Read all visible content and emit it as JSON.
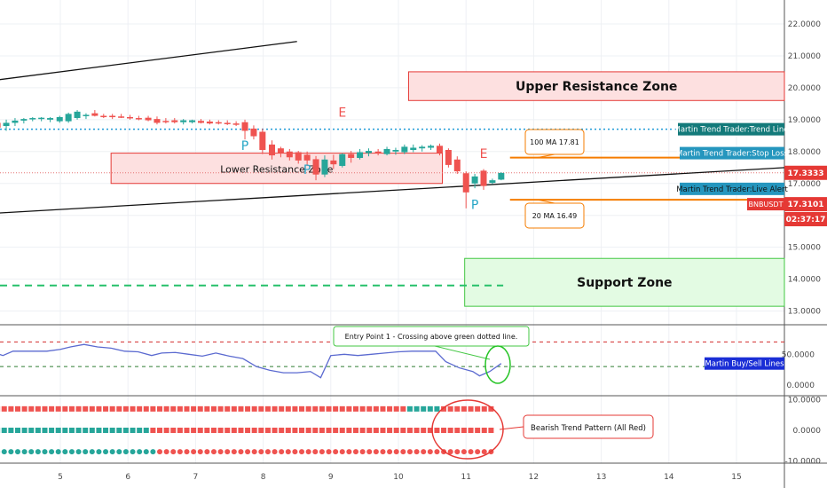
{
  "colors": {
    "up": "#26a69a",
    "down": "#ef5350",
    "resistance_fill": "#fde0e0",
    "resistance_stroke": "#e53935",
    "support_fill": "#e3fbe3",
    "support_stroke": "#43c743",
    "trendline_blue": "#1e9bd7",
    "ma_orange": "#f57c00",
    "signal_green": "#26c06a",
    "pattern_red": "#e53935",
    "rsi_blue": "#5b6ad0"
  },
  "chart_data": [
    {
      "type": "candlestick",
      "pair_tag": "BNBUSDT",
      "last_price": "17.3333",
      "tag_price": "17.3101",
      "countdown": "02:37:17",
      "y_ticks": [
        "22.0000",
        "21.0000",
        "20.0000",
        "19.0000",
        "18.0000",
        "17.0000",
        "16.0000",
        "15.0000",
        "14.0000",
        "13.0000"
      ],
      "ylim": [
        12.3,
        22.5
      ],
      "x_ticks": [
        "5",
        "6",
        "7",
        "8",
        "9",
        "10",
        "11",
        "12",
        "13",
        "14",
        "15"
      ],
      "candles": [
        {
          "x": 3.97,
          "o": 18.95,
          "h": 19.15,
          "l": 18.7,
          "c": 18.9
        },
        {
          "x": 4.07,
          "o": 18.9,
          "h": 19.0,
          "l": 18.2,
          "c": 18.75
        },
        {
          "x": 4.2,
          "o": 18.8,
          "h": 19.0,
          "l": 18.65,
          "c": 18.9
        },
        {
          "x": 4.33,
          "o": 18.9,
          "h": 19.05,
          "l": 18.8,
          "c": 18.97
        },
        {
          "x": 4.46,
          "o": 18.97,
          "h": 19.05,
          "l": 18.88,
          "c": 19.02
        },
        {
          "x": 4.59,
          "o": 19.02,
          "h": 19.08,
          "l": 18.95,
          "c": 19.05
        },
        {
          "x": 4.72,
          "o": 19.02,
          "h": 19.08,
          "l": 18.95,
          "c": 19.06
        },
        {
          "x": 4.85,
          "o": 19.0,
          "h": 19.08,
          "l": 18.92,
          "c": 19.05
        },
        {
          "x": 4.99,
          "o": 18.95,
          "h": 19.12,
          "l": 18.9,
          "c": 19.08
        },
        {
          "x": 5.12,
          "o": 18.95,
          "h": 19.22,
          "l": 18.9,
          "c": 19.18
        },
        {
          "x": 5.25,
          "o": 19.05,
          "h": 19.3,
          "l": 19.0,
          "c": 19.25
        },
        {
          "x": 5.38,
          "o": 19.12,
          "h": 19.2,
          "l": 19.02,
          "c": 19.15
        },
        {
          "x": 5.51,
          "o": 19.2,
          "h": 19.3,
          "l": 19.1,
          "c": 19.12
        },
        {
          "x": 5.64,
          "o": 19.12,
          "h": 19.18,
          "l": 19.05,
          "c": 19.1
        },
        {
          "x": 5.77,
          "o": 19.12,
          "h": 19.18,
          "l": 19.02,
          "c": 19.08
        },
        {
          "x": 5.9,
          "o": 19.1,
          "h": 19.18,
          "l": 19.05,
          "c": 19.07
        },
        {
          "x": 6.03,
          "o": 19.08,
          "h": 19.15,
          "l": 19.0,
          "c": 19.05
        },
        {
          "x": 6.16,
          "o": 19.05,
          "h": 19.12,
          "l": 18.98,
          "c": 19.02
        },
        {
          "x": 6.3,
          "o": 19.06,
          "h": 19.12,
          "l": 18.95,
          "c": 18.98
        },
        {
          "x": 6.43,
          "o": 19.02,
          "h": 19.1,
          "l": 18.85,
          "c": 18.9
        },
        {
          "x": 6.56,
          "o": 18.96,
          "h": 19.05,
          "l": 18.88,
          "c": 18.92
        },
        {
          "x": 6.69,
          "o": 18.98,
          "h": 19.05,
          "l": 18.88,
          "c": 18.92
        },
        {
          "x": 6.82,
          "o": 18.92,
          "h": 19.02,
          "l": 18.85,
          "c": 18.98
        },
        {
          "x": 6.95,
          "o": 18.92,
          "h": 19.0,
          "l": 18.88,
          "c": 18.98
        },
        {
          "x": 7.08,
          "o": 18.96,
          "h": 19.02,
          "l": 18.88,
          "c": 18.9
        },
        {
          "x": 7.21,
          "o": 18.94,
          "h": 19.0,
          "l": 18.85,
          "c": 18.88
        },
        {
          "x": 7.34,
          "o": 18.92,
          "h": 18.98,
          "l": 18.85,
          "c": 18.88
        },
        {
          "x": 7.47,
          "o": 18.9,
          "h": 18.98,
          "l": 18.83,
          "c": 18.86
        },
        {
          "x": 7.6,
          "o": 18.88,
          "h": 18.95,
          "l": 18.8,
          "c": 18.85
        },
        {
          "x": 7.73,
          "o": 18.92,
          "h": 19.0,
          "l": 18.38,
          "c": 18.65
        },
        {
          "x": 7.86,
          "o": 18.72,
          "h": 18.82,
          "l": 18.38,
          "c": 18.48
        },
        {
          "x": 7.99,
          "o": 18.62,
          "h": 18.72,
          "l": 17.92,
          "c": 18.05
        },
        {
          "x": 8.13,
          "o": 18.22,
          "h": 18.35,
          "l": 17.75,
          "c": 17.88
        },
        {
          "x": 8.26,
          "o": 18.1,
          "h": 18.15,
          "l": 17.82,
          "c": 17.95
        },
        {
          "x": 8.39,
          "o": 18.0,
          "h": 18.08,
          "l": 17.72,
          "c": 17.82
        },
        {
          "x": 8.52,
          "o": 17.98,
          "h": 18.02,
          "l": 17.62,
          "c": 17.72
        },
        {
          "x": 8.65,
          "o": 17.9,
          "h": 18.0,
          "l": 17.55,
          "c": 17.72
        },
        {
          "x": 8.78,
          "o": 17.76,
          "h": 17.86,
          "l": 17.1,
          "c": 17.28
        },
        {
          "x": 8.91,
          "o": 17.28,
          "h": 17.88,
          "l": 17.2,
          "c": 17.75
        },
        {
          "x": 9.04,
          "o": 17.72,
          "h": 17.9,
          "l": 17.45,
          "c": 17.6
        },
        {
          "x": 9.17,
          "o": 17.55,
          "h": 17.95,
          "l": 17.5,
          "c": 17.92
        },
        {
          "x": 9.3,
          "o": 17.92,
          "h": 18.02,
          "l": 17.65,
          "c": 17.8
        },
        {
          "x": 9.43,
          "o": 17.8,
          "h": 18.08,
          "l": 17.75,
          "c": 17.98
        },
        {
          "x": 9.56,
          "o": 17.95,
          "h": 18.1,
          "l": 17.85,
          "c": 18.02
        },
        {
          "x": 9.7,
          "o": 18.0,
          "h": 18.08,
          "l": 17.88,
          "c": 17.96
        },
        {
          "x": 9.83,
          "o": 17.92,
          "h": 18.15,
          "l": 17.88,
          "c": 18.08
        },
        {
          "x": 9.96,
          "o": 18.0,
          "h": 18.12,
          "l": 17.9,
          "c": 18.05
        },
        {
          "x": 10.09,
          "o": 17.98,
          "h": 18.22,
          "l": 17.92,
          "c": 18.15
        },
        {
          "x": 10.22,
          "o": 18.05,
          "h": 18.22,
          "l": 17.98,
          "c": 18.12
        },
        {
          "x": 10.35,
          "o": 18.1,
          "h": 18.2,
          "l": 18.0,
          "c": 18.15
        },
        {
          "x": 10.48,
          "o": 18.12,
          "h": 18.22,
          "l": 18.05,
          "c": 18.18
        },
        {
          "x": 10.61,
          "o": 18.18,
          "h": 18.25,
          "l": 17.88,
          "c": 17.95
        },
        {
          "x": 10.74,
          "o": 18.05,
          "h": 18.1,
          "l": 17.5,
          "c": 17.58
        },
        {
          "x": 10.87,
          "o": 17.75,
          "h": 17.85,
          "l": 17.3,
          "c": 17.38
        },
        {
          "x": 11.0,
          "o": 17.32,
          "h": 17.38,
          "l": 16.22,
          "c": 16.72
        },
        {
          "x": 11.13,
          "o": 17.0,
          "h": 17.3,
          "l": 16.85,
          "c": 17.22
        },
        {
          "x": 11.26,
          "o": 17.4,
          "h": 17.45,
          "l": 16.8,
          "c": 16.92
        },
        {
          "x": 11.39,
          "o": 17.02,
          "h": 17.15,
          "l": 16.98,
          "c": 17.1
        },
        {
          "x": 11.52,
          "o": 17.12,
          "h": 17.35,
          "l": 17.1,
          "c": 17.33
        }
      ],
      "marks": [
        {
          "text": "P",
          "x": 7.73,
          "y": 18.05,
          "color": "#26a6c6"
        },
        {
          "text": "P",
          "x": 8.65,
          "y": 17.3,
          "color": "#26a6c6"
        },
        {
          "text": "P",
          "x": 11.13,
          "y": 16.2,
          "color": "#26a6c6"
        },
        {
          "text": "E",
          "x": 9.17,
          "y": 19.1,
          "color": "#ef5350"
        },
        {
          "text": "E",
          "x": 11.26,
          "y": 17.8,
          "color": "#ef5350"
        }
      ],
      "zones": {
        "upper": {
          "label": "Upper Resistance Zone",
          "x0": 10.15,
          "x1": 15.75,
          "y0": 19.6,
          "y1": 20.5
        },
        "lower": {
          "label": "Lower Resistance Zone",
          "x0": 5.75,
          "x1": 10.65,
          "y0": 17.0,
          "y1": 17.95
        },
        "support": {
          "label": "Support Zone",
          "x0": 10.98,
          "x1": 15.75,
          "y0": 13.15,
          "y1": 14.65
        }
      },
      "trendline_value": 18.7,
      "trendline_label": "Martin Trend Trader:Trend Line",
      "stop_loss_label": "Martin Trend Trader:Stop Loss",
      "live_alert_label": "Martin Trend Trader:Live Alert",
      "ma100": {
        "value": 17.81,
        "label": "100 MA 17.81"
      },
      "ma20": {
        "value": 16.49,
        "label": "20 MA 16.49"
      },
      "support_dash_value": 13.8,
      "upper_line": {
        "x0": 3.9,
        "y0": 20.2,
        "x1": 8.5,
        "y1": 21.45
      },
      "lower_line": {
        "x0": 3.9,
        "y0": 16.05,
        "x1": 15.75,
        "y1": 17.5
      }
    },
    {
      "type": "line",
      "name": "Martin Buy/Sell Lines",
      "y_ticks": [
        "50.0000",
        "0.0000"
      ],
      "ylim": [
        -15,
        90
      ],
      "upper_band": 70,
      "lower_band": 30,
      "annotation": "Entry Point 1 - Crossing above green dotted line.",
      "x": [
        3.97,
        4.15,
        4.3,
        4.55,
        4.8,
        5.0,
        5.15,
        5.35,
        5.55,
        5.75,
        5.95,
        6.15,
        6.35,
        6.5,
        6.7,
        6.9,
        7.1,
        7.3,
        7.5,
        7.7,
        7.9,
        8.1,
        8.3,
        8.5,
        8.7,
        8.85,
        9.0,
        9.2,
        9.4,
        9.6,
        9.8,
        10.0,
        10.2,
        10.4,
        10.55,
        10.7,
        10.9,
        11.1,
        11.2,
        11.35,
        11.52
      ],
      "values": [
        55,
        48,
        55,
        55,
        55,
        58,
        62,
        66,
        62,
        60,
        55,
        54,
        48,
        52,
        53,
        50,
        47,
        52,
        47,
        43,
        30,
        24,
        20,
        20,
        22,
        12,
        48,
        50,
        48,
        50,
        52,
        54,
        55,
        55,
        55,
        38,
        28,
        22,
        15,
        22,
        35
      ]
    },
    {
      "type": "dots",
      "name": "Bearish Trend Pattern (All Red)",
      "y_ticks": [
        "10.0000",
        "0.0000",
        "-10.0000"
      ],
      "ylim": [
        -13,
        12
      ],
      "rows": [
        {
          "level": 7,
          "up_from": 10.12,
          "up_to": 10.65
        },
        {
          "level": 0,
          "up_from": 3.9,
          "up_to": 6.3
        },
        {
          "level": -7,
          "up_from": 3.9,
          "up_to": 6.4
        }
      ],
      "x_start": 3.97,
      "x_end": 11.45,
      "step": 0.1
    }
  ]
}
